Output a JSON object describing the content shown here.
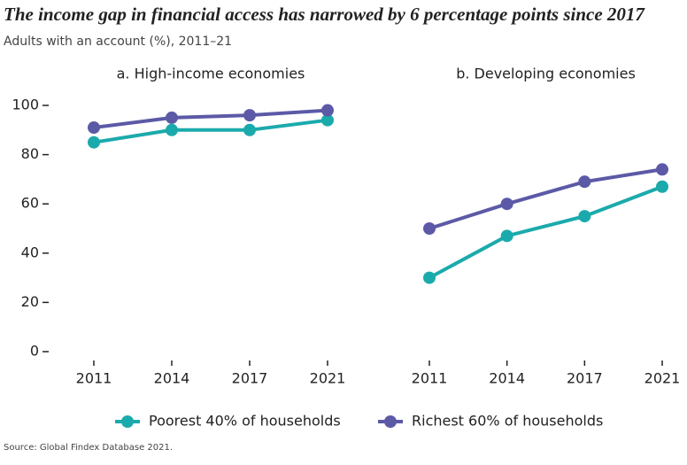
{
  "title": "The income gap in financial access has narrowed by 6 percentage points since 2017",
  "subtitle": "Adults with an account (%), 2011–21",
  "source": "Source: Global Findex Database 2021.",
  "chart_data": [
    {
      "type": "line",
      "title": "a. High-income economies",
      "categories": [
        "2011",
        "2014",
        "2017",
        "2021"
      ],
      "ylim": [
        0,
        100
      ],
      "yticks": [
        0,
        20,
        40,
        60,
        80,
        100
      ],
      "series": [
        {
          "name": "Poorest 40% of households",
          "color": "#1baaac",
          "values": [
            85,
            90,
            90,
            94
          ]
        },
        {
          "name": "Richest 60% of households",
          "color": "#5c5aa6",
          "values": [
            91,
            95,
            96,
            98
          ]
        }
      ]
    },
    {
      "type": "line",
      "title": "b. Developing economies",
      "categories": [
        "2011",
        "2014",
        "2017",
        "2021"
      ],
      "ylim": [
        0,
        100
      ],
      "series": [
        {
          "color": "#1baaac",
          "values": [
            30,
            47,
            55,
            67
          ]
        },
        {
          "color": "#5c5aa6",
          "values": [
            50,
            60,
            69,
            74
          ]
        }
      ]
    }
  ]
}
